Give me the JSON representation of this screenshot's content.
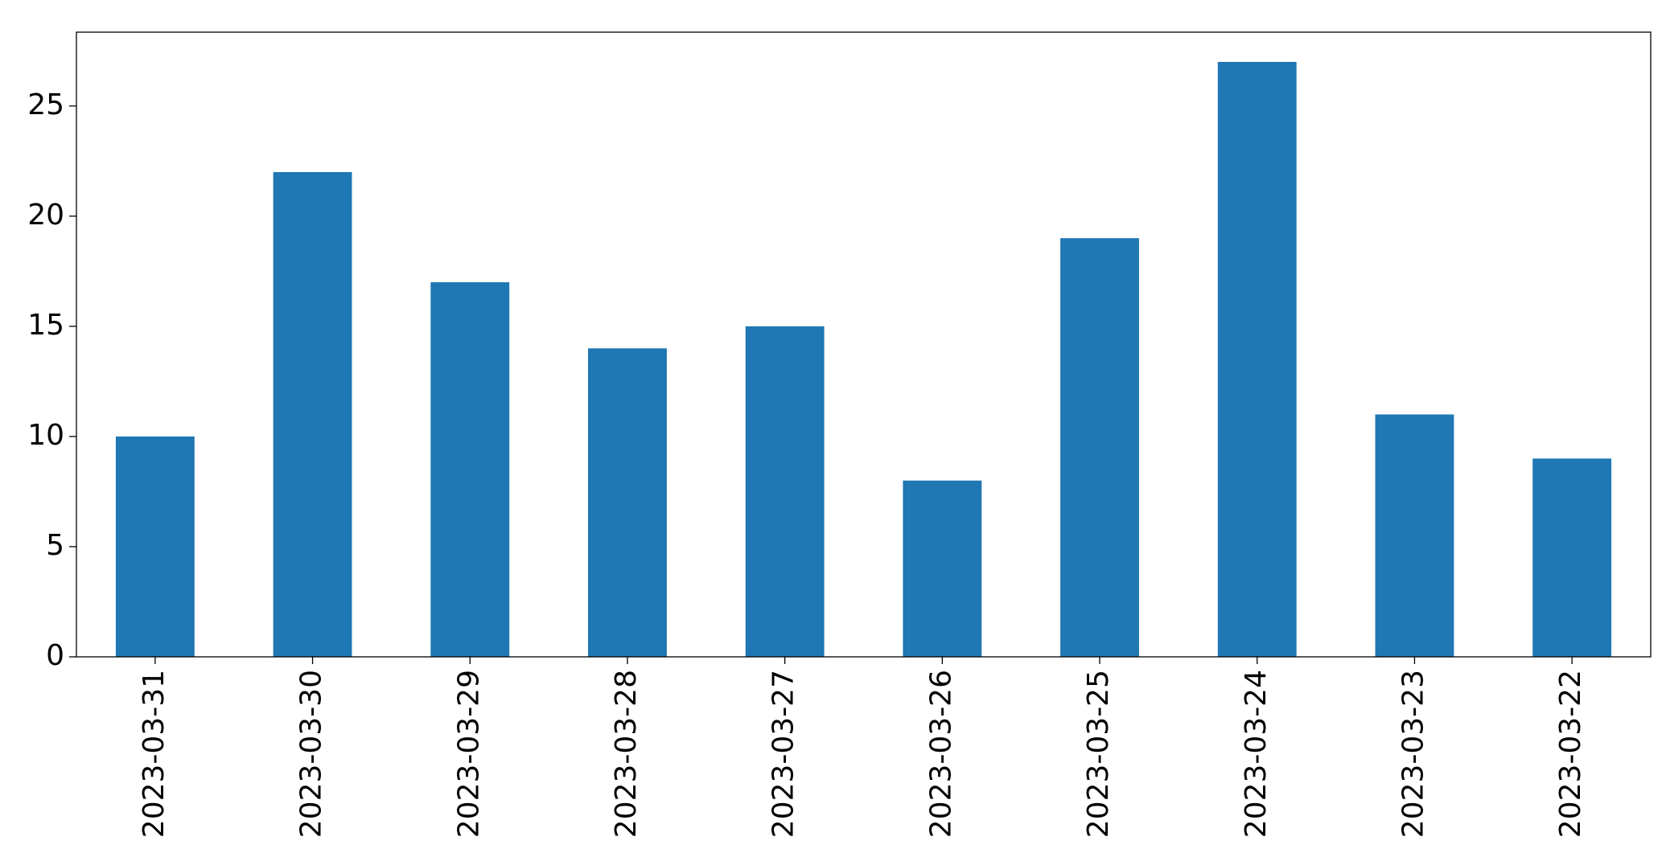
{
  "chart_data": {
    "type": "bar",
    "categories": [
      "2023-03-31",
      "2023-03-30",
      "2023-03-29",
      "2023-03-28",
      "2023-03-27",
      "2023-03-26",
      "2023-03-25",
      "2023-03-24",
      "2023-03-23",
      "2023-03-22"
    ],
    "values": [
      10,
      22,
      17,
      14,
      15,
      8,
      19,
      27,
      11,
      9
    ],
    "color": "#1f77b4",
    "ylim": [
      0,
      28.35
    ],
    "yticks": [
      0,
      5,
      10,
      15,
      20,
      25
    ],
    "grid": false
  }
}
